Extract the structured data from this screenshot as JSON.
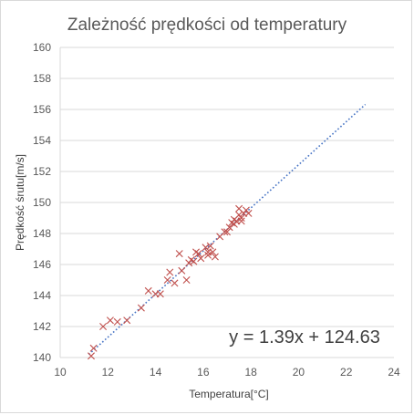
{
  "chart_data": {
    "type": "scatter",
    "title": "Zależność prędkości od temperatury",
    "xlabel": "Temperatura[°C]",
    "ylabel": "Prędkość śrutu[m/s]",
    "xlim": [
      10,
      24
    ],
    "ylim": [
      140,
      160
    ],
    "x_ticks": [
      "10",
      "12",
      "14",
      "16",
      "18",
      "20",
      "22",
      "24"
    ],
    "y_ticks": [
      "140",
      "142",
      "144",
      "146",
      "148",
      "150",
      "152",
      "154",
      "156",
      "158",
      "160"
    ],
    "grid": "horizontal",
    "marker": "x",
    "colors": {
      "marker": "#c0504d",
      "trendline": "#4472c4",
      "grid": "#d9d9d9"
    },
    "series": [
      {
        "points": [
          [
            11.3,
            140.1
          ],
          [
            11.4,
            140.6
          ],
          [
            11.8,
            142.0
          ],
          [
            12.1,
            142.4
          ],
          [
            12.4,
            142.3
          ],
          [
            12.8,
            142.4
          ],
          [
            13.4,
            143.2
          ],
          [
            13.7,
            144.3
          ],
          [
            14.0,
            144.1
          ],
          [
            14.2,
            144.1
          ],
          [
            14.5,
            145.0
          ],
          [
            14.6,
            145.5
          ],
          [
            14.8,
            144.8
          ],
          [
            15.0,
            146.7
          ],
          [
            15.1,
            145.6
          ],
          [
            15.3,
            145.0
          ],
          [
            15.4,
            146.1
          ],
          [
            15.5,
            146.3
          ],
          [
            15.6,
            146.2
          ],
          [
            15.7,
            146.8
          ],
          [
            15.8,
            146.7
          ],
          [
            15.9,
            146.4
          ],
          [
            16.1,
            147.1
          ],
          [
            16.2,
            146.8
          ],
          [
            16.2,
            146.6
          ],
          [
            16.3,
            147.2
          ],
          [
            16.4,
            146.8
          ],
          [
            16.5,
            146.5
          ],
          [
            16.7,
            147.8
          ],
          [
            16.9,
            148.1
          ],
          [
            17.0,
            148.1
          ],
          [
            17.1,
            148.4
          ],
          [
            17.2,
            148.7
          ],
          [
            17.3,
            148.6
          ],
          [
            17.3,
            148.9
          ],
          [
            17.4,
            148.8
          ],
          [
            17.5,
            149.2
          ],
          [
            17.5,
            149.6
          ],
          [
            17.6,
            149.0
          ],
          [
            17.6,
            148.8
          ],
          [
            17.7,
            149.3
          ],
          [
            17.8,
            149.5
          ],
          [
            17.9,
            149.3
          ]
        ]
      }
    ],
    "trendline": {
      "type": "linear",
      "slope": 1.39,
      "intercept": 124.63,
      "x_range": [
        11.2,
        22.8
      ],
      "label": "y = 1.39x + 124.63"
    }
  }
}
